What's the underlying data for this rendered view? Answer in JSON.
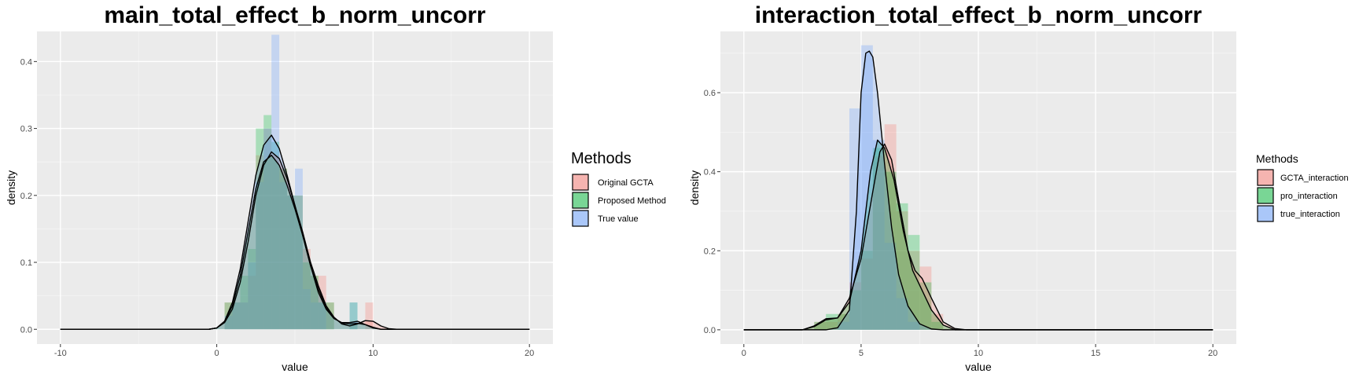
{
  "chart_data": [
    {
      "type": "area",
      "title": "main_total_effect_b_norm_uncorr",
      "xlabel": "value",
      "ylabel": "density",
      "xlim": [
        -11.5,
        21.5
      ],
      "ylim": [
        -0.022,
        0.445
      ],
      "x_ticks": [
        -10,
        0,
        10,
        20
      ],
      "x_tick_labels": [
        "-10",
        "0",
        "10",
        "20"
      ],
      "y_ticks": [
        0.0,
        0.1,
        0.2,
        0.3,
        0.4
      ],
      "y_tick_labels": [
        "0.0",
        "0.1",
        "0.2",
        "0.3",
        "0.4"
      ],
      "grid": true,
      "legend_position": "right",
      "legend_title": "Methods",
      "histogram_bin_width": 0.5,
      "series": [
        {
          "name": "Original GCTA",
          "color": "#F8766D",
          "histogram": [
            [
              0.75,
              0.04
            ],
            [
              1.25,
              0.04
            ],
            [
              1.75,
              0.04
            ],
            [
              2.25,
              0.08
            ],
            [
              2.75,
              0.26
            ],
            [
              3.25,
              0.3
            ],
            [
              3.75,
              0.26
            ],
            [
              4.25,
              0.24
            ],
            [
              4.75,
              0.2
            ],
            [
              5.25,
              0.2
            ],
            [
              5.75,
              0.12
            ],
            [
              6.25,
              0.08
            ],
            [
              6.75,
              0.08
            ],
            [
              7.25,
              0.04
            ],
            [
              9.75,
              0.04
            ]
          ],
          "density": [
            [
              -10,
              0
            ],
            [
              -0.5,
              0
            ],
            [
              0,
              0.002
            ],
            [
              0.5,
              0.01
            ],
            [
              1,
              0.03
            ],
            [
              1.5,
              0.07
            ],
            [
              2,
              0.13
            ],
            [
              2.5,
              0.2
            ],
            [
              3,
              0.245
            ],
            [
              3.5,
              0.265
            ],
            [
              4,
              0.255
            ],
            [
              4.5,
              0.225
            ],
            [
              5,
              0.185
            ],
            [
              5.5,
              0.145
            ],
            [
              6,
              0.1
            ],
            [
              6.5,
              0.065
            ],
            [
              7,
              0.035
            ],
            [
              7.5,
              0.018
            ],
            [
              8,
              0.008
            ],
            [
              8.5,
              0.005
            ],
            [
              9,
              0.008
            ],
            [
              9.5,
              0.013
            ],
            [
              10,
              0.012
            ],
            [
              10.5,
              0.005
            ],
            [
              11,
              0.001
            ],
            [
              11.5,
              0
            ],
            [
              20,
              0
            ]
          ]
        },
        {
          "name": "Proposed Method",
          "color": "#00BA38",
          "histogram": [
            [
              0.75,
              0.04
            ],
            [
              1.25,
              0.04
            ],
            [
              1.75,
              0.08
            ],
            [
              2.25,
              0.12
            ],
            [
              2.75,
              0.3
            ],
            [
              3.25,
              0.32
            ],
            [
              3.75,
              0.28
            ],
            [
              4.25,
              0.24
            ],
            [
              4.75,
              0.2
            ],
            [
              5.25,
              0.2
            ],
            [
              5.75,
              0.1
            ],
            [
              6.25,
              0.08
            ],
            [
              6.75,
              0.04
            ],
            [
              7.25,
              0.04
            ],
            [
              8.75,
              0.04
            ]
          ],
          "density": [
            [
              -10,
              0
            ],
            [
              -0.5,
              0
            ],
            [
              0,
              0.002
            ],
            [
              0.5,
              0.012
            ],
            [
              1,
              0.035
            ],
            [
              1.5,
              0.08
            ],
            [
              2,
              0.145
            ],
            [
              2.5,
              0.21
            ],
            [
              3,
              0.25
            ],
            [
              3.5,
              0.26
            ],
            [
              4,
              0.245
            ],
            [
              4.5,
              0.215
            ],
            [
              5,
              0.18
            ],
            [
              5.5,
              0.14
            ],
            [
              6,
              0.095
            ],
            [
              6.5,
              0.06
            ],
            [
              7,
              0.032
            ],
            [
              7.5,
              0.017
            ],
            [
              8,
              0.009
            ],
            [
              8.5,
              0.008
            ],
            [
              9,
              0.009
            ],
            [
              9.5,
              0.007
            ],
            [
              10,
              0.003
            ],
            [
              10.5,
              0
            ],
            [
              20,
              0
            ]
          ]
        },
        {
          "name": "True value",
          "color": "#619CFF",
          "histogram": [
            [
              0.75,
              0.02
            ],
            [
              1.25,
              0.04
            ],
            [
              1.75,
              0.04
            ],
            [
              2.25,
              0.1
            ],
            [
              2.75,
              0.22
            ],
            [
              3.25,
              0.3
            ],
            [
              3.75,
              0.44
            ],
            [
              4.25,
              0.22
            ],
            [
              4.75,
              0.2
            ],
            [
              5.25,
              0.24
            ],
            [
              5.75,
              0.06
            ],
            [
              6.25,
              0.04
            ],
            [
              6.75,
              0.04
            ],
            [
              8.75,
              0.04
            ]
          ],
          "density": [
            [
              -10,
              0
            ],
            [
              -0.5,
              0
            ],
            [
              0,
              0.002
            ],
            [
              0.5,
              0.012
            ],
            [
              1,
              0.04
            ],
            [
              1.5,
              0.09
            ],
            [
              2,
              0.16
            ],
            [
              2.5,
              0.23
            ],
            [
              3,
              0.275
            ],
            [
              3.5,
              0.29
            ],
            [
              4,
              0.27
            ],
            [
              4.5,
              0.23
            ],
            [
              5,
              0.185
            ],
            [
              5.5,
              0.14
            ],
            [
              6,
              0.095
            ],
            [
              6.5,
              0.055
            ],
            [
              7,
              0.03
            ],
            [
              7.5,
              0.016
            ],
            [
              8,
              0.01
            ],
            [
              8.5,
              0.01
            ],
            [
              9,
              0.012
            ],
            [
              9.5,
              0.007
            ],
            [
              10,
              0.002
            ],
            [
              10.5,
              0
            ],
            [
              20,
              0
            ]
          ]
        }
      ]
    },
    {
      "type": "area",
      "title": "interaction_total_effect_b_norm_uncorr",
      "xlabel": "value",
      "ylabel": "density",
      "xlim": [
        -1,
        21
      ],
      "ylim": [
        -0.036,
        0.755
      ],
      "x_ticks": [
        0,
        5,
        10,
        15,
        20
      ],
      "x_tick_labels": [
        "0",
        "5",
        "10",
        "15",
        "20"
      ],
      "y_ticks": [
        0.0,
        0.2,
        0.4,
        0.6
      ],
      "y_tick_labels": [
        "0.0",
        "0.2",
        "0.4",
        "0.6"
      ],
      "grid": true,
      "legend_position": "right",
      "legend_title": "Methods",
      "histogram_bin_width": 0.5,
      "series": [
        {
          "name": "GCTA_interaction",
          "color": "#F8766D",
          "histogram": [
            [
              3.25,
              0.02
            ],
            [
              3.75,
              0.02
            ],
            [
              4.25,
              0.04
            ],
            [
              4.75,
              0.12
            ],
            [
              5.25,
              0.18
            ],
            [
              5.75,
              0.44
            ],
            [
              6.25,
              0.52
            ],
            [
              6.75,
              0.3
            ],
            [
              7.25,
              0.2
            ],
            [
              7.75,
              0.16
            ],
            [
              8.25,
              0.04
            ]
          ],
          "density": [
            [
              0,
              0
            ],
            [
              2.5,
              0
            ],
            [
              3,
              0.008
            ],
            [
              3.5,
              0.025
            ],
            [
              4,
              0.03
            ],
            [
              4.5,
              0.08
            ],
            [
              5,
              0.18
            ],
            [
              5.5,
              0.35
            ],
            [
              5.8,
              0.45
            ],
            [
              6,
              0.47
            ],
            [
              6.3,
              0.43
            ],
            [
              6.6,
              0.33
            ],
            [
              7,
              0.2
            ],
            [
              7.3,
              0.15
            ],
            [
              7.6,
              0.13
            ],
            [
              8,
              0.08
            ],
            [
              8.5,
              0.02
            ],
            [
              9,
              0.003
            ],
            [
              9.5,
              0
            ],
            [
              20,
              0
            ]
          ]
        },
        {
          "name": "pro_interaction",
          "color": "#00BA38",
          "histogram": [
            [
              3.25,
              0.02
            ],
            [
              3.75,
              0.04
            ],
            [
              4.25,
              0.04
            ],
            [
              4.75,
              0.1
            ],
            [
              5.25,
              0.2
            ],
            [
              5.75,
              0.46
            ],
            [
              6.25,
              0.4
            ],
            [
              6.75,
              0.32
            ],
            [
              7.25,
              0.24
            ],
            [
              7.75,
              0.12
            ],
            [
              8.25,
              0.02
            ]
          ],
          "density": [
            [
              0,
              0
            ],
            [
              2.5,
              0
            ],
            [
              3,
              0.01
            ],
            [
              3.5,
              0.028
            ],
            [
              4,
              0.03
            ],
            [
              4.5,
              0.07
            ],
            [
              5,
              0.2
            ],
            [
              5.4,
              0.4
            ],
            [
              5.7,
              0.48
            ],
            [
              6,
              0.46
            ],
            [
              6.4,
              0.38
            ],
            [
              6.8,
              0.25
            ],
            [
              7.2,
              0.15
            ],
            [
              7.6,
              0.1
            ],
            [
              8,
              0.05
            ],
            [
              8.5,
              0.012
            ],
            [
              9,
              0
            ],
            [
              20,
              0
            ]
          ]
        },
        {
          "name": "true_interaction",
          "color": "#619CFF",
          "histogram": [
            [
              4.25,
              0.02
            ],
            [
              4.75,
              0.56
            ],
            [
              5.25,
              0.72
            ],
            [
              5.75,
              0.48
            ],
            [
              6.25,
              0.22
            ],
            [
              6.75,
              0.08
            ],
            [
              7.25,
              0.02
            ]
          ],
          "density": [
            [
              0,
              0
            ],
            [
              3.5,
              0
            ],
            [
              4,
              0.005
            ],
            [
              4.5,
              0.05
            ],
            [
              4.8,
              0.3
            ],
            [
              5,
              0.6
            ],
            [
              5.2,
              0.7
            ],
            [
              5.35,
              0.705
            ],
            [
              5.5,
              0.69
            ],
            [
              5.7,
              0.6
            ],
            [
              6,
              0.42
            ],
            [
              6.3,
              0.26
            ],
            [
              6.6,
              0.14
            ],
            [
              7,
              0.06
            ],
            [
              7.5,
              0.015
            ],
            [
              8,
              0.002
            ],
            [
              8.5,
              0
            ],
            [
              20,
              0
            ]
          ]
        }
      ]
    }
  ]
}
